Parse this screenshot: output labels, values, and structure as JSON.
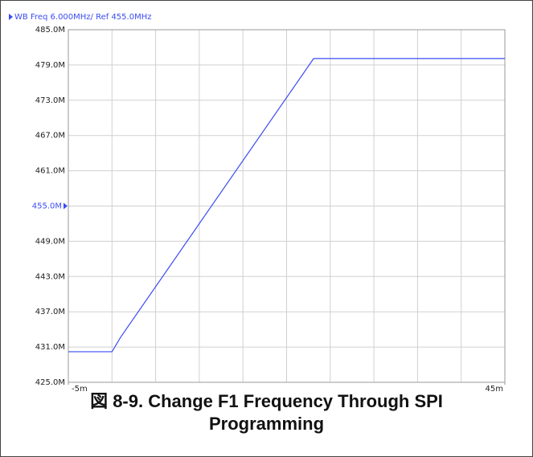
{
  "chart_data": {
    "type": "line",
    "title": "WB Freq 6.000MHz/ Ref 455.0MHz",
    "caption": "図 8-9. Change F1 Frequency Through SPI Programming",
    "x": [
      -5,
      0,
      1,
      23.1,
      45
    ],
    "series": [
      {
        "name": "WB Freq",
        "color": "#3b4cf0",
        "values": [
          430.2,
          430.2,
          432.7,
          480.1,
          480.1
        ]
      }
    ],
    "xlim": [
      -5,
      45
    ],
    "xticks": [
      {
        "value": -5,
        "label": "-5m"
      },
      {
        "value": 45,
        "label": "45m"
      }
    ],
    "xgrid": [
      0,
      5,
      10,
      15,
      20,
      25,
      30,
      35,
      40
    ],
    "ylim": [
      425,
      485
    ],
    "yticks": [
      {
        "value": 485,
        "label": "485.0M"
      },
      {
        "value": 479,
        "label": "479.0M"
      },
      {
        "value": 473,
        "label": "473.0M"
      },
      {
        "value": 467,
        "label": "467.0M"
      },
      {
        "value": 461,
        "label": "461.0M"
      },
      {
        "value": 455,
        "label": "455.0M"
      },
      {
        "value": 449,
        "label": "449.0M"
      },
      {
        "value": 443,
        "label": "443.0M"
      },
      {
        "value": 437,
        "label": "437.0M"
      },
      {
        "value": 431,
        "label": "431.0M"
      },
      {
        "value": 425,
        "label": "425.0M"
      }
    ],
    "reference": 455,
    "reference_color": "#3b4cf0",
    "grid": true
  }
}
